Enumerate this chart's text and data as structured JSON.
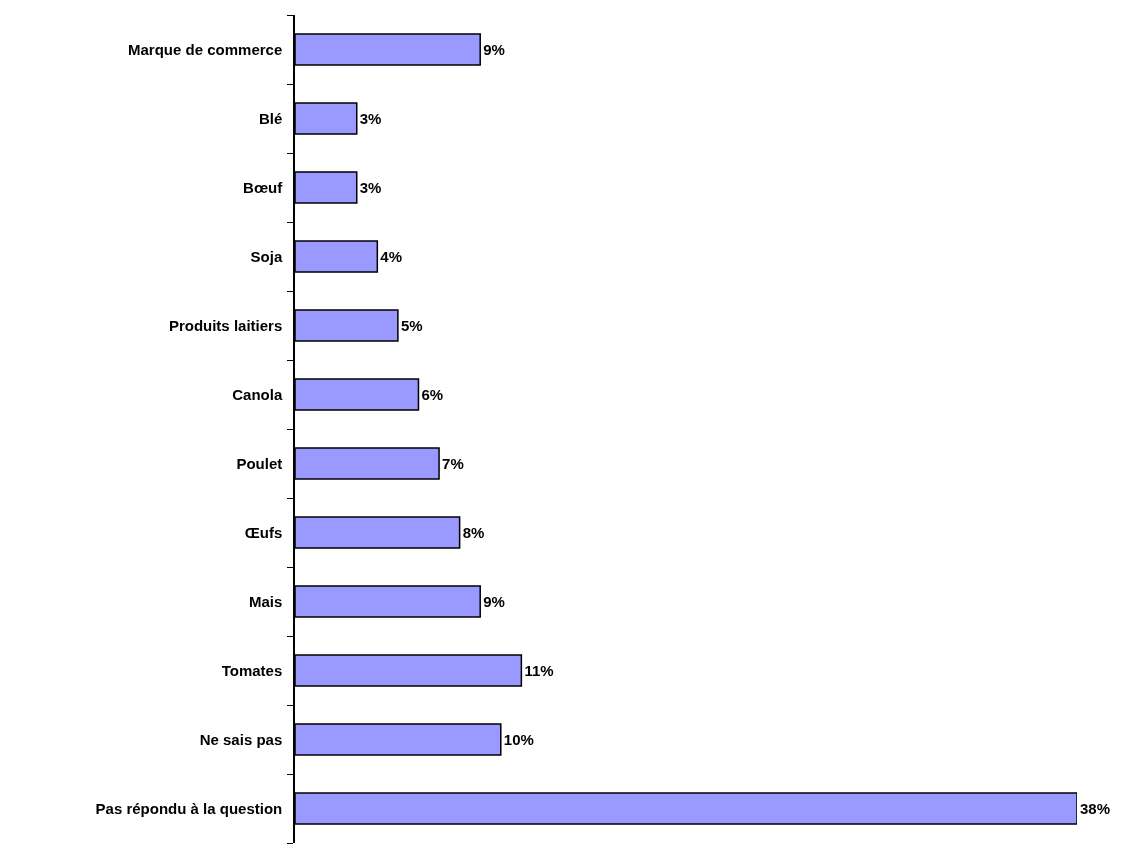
{
  "chart_data": {
    "type": "bar",
    "orientation": "horizontal",
    "categories": [
      "Marque de commerce",
      "Blé",
      "Bœuf",
      "Soja",
      "Produits laitiers",
      "Canola",
      "Poulet",
      "Œufs",
      "Mais",
      "Tomates",
      "Ne sais pas",
      "Pas répondu à la question"
    ],
    "values": [
      9,
      3,
      3,
      4,
      5,
      6,
      7,
      8,
      9,
      11,
      10,
      38
    ],
    "value_labels": [
      "9%",
      "3%",
      "3%",
      "4%",
      "5%",
      "6%",
      "7%",
      "8%",
      "9%",
      "11%",
      "10%",
      "38%"
    ],
    "color": "#9999ff"
  }
}
